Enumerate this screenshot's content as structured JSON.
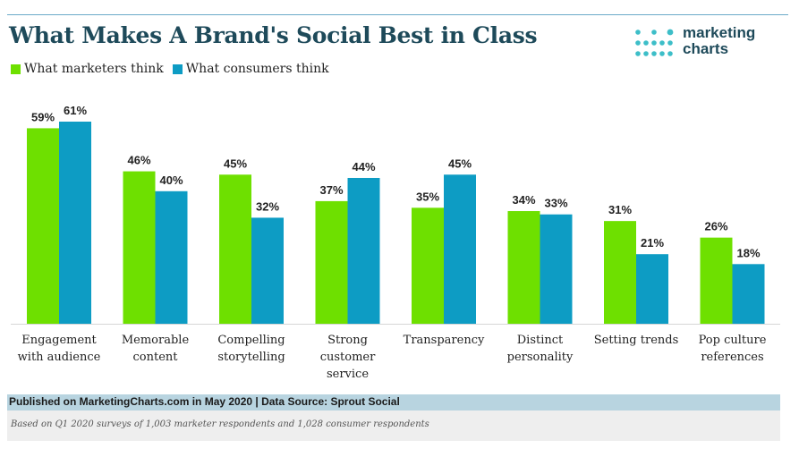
{
  "title": "What Makes A Brand's Social Best in Class",
  "logo": {
    "line1": "marketing",
    "line2": "charts"
  },
  "colors": {
    "marketers": "#6ee000",
    "consumers": "#0d9cc4",
    "title": "#1e4a5a",
    "logo_dots": "#3dbec8"
  },
  "footer": {
    "source": "Published on MarketingCharts.com in May 2020 | Data Source: Sprout Social",
    "note": "Based on Q1 2020 surveys of 1,003 marketer respondents and 1,028 consumer respondents"
  },
  "chart_data": {
    "type": "bar",
    "title": "What Makes A Brand's Social Best in Class",
    "categories": [
      [
        "Engagement",
        "with audience"
      ],
      [
        "Memorable",
        "content"
      ],
      [
        "Compelling",
        "storytelling"
      ],
      [
        "Strong",
        "customer",
        "service"
      ],
      [
        "Transparency"
      ],
      [
        "Distinct",
        "personality"
      ],
      [
        "Setting trends"
      ],
      [
        "Pop culture",
        "references"
      ]
    ],
    "series": [
      {
        "name": "What marketers think",
        "values": [
          59,
          46,
          45,
          37,
          35,
          34,
          31,
          26
        ],
        "labels": [
          "59%",
          "46%",
          "45%",
          "37%",
          "35%",
          "34%",
          "31%",
          "26%"
        ]
      },
      {
        "name": "What consumers think",
        "values": [
          61,
          40,
          32,
          44,
          45,
          33,
          21,
          18
        ],
        "labels": [
          "61%",
          "40%",
          "32%",
          "44%",
          "45%",
          "33%",
          "21%",
          "18%"
        ]
      }
    ],
    "ylim": [
      0,
      61
    ],
    "grid": false,
    "legend": "top-left"
  }
}
